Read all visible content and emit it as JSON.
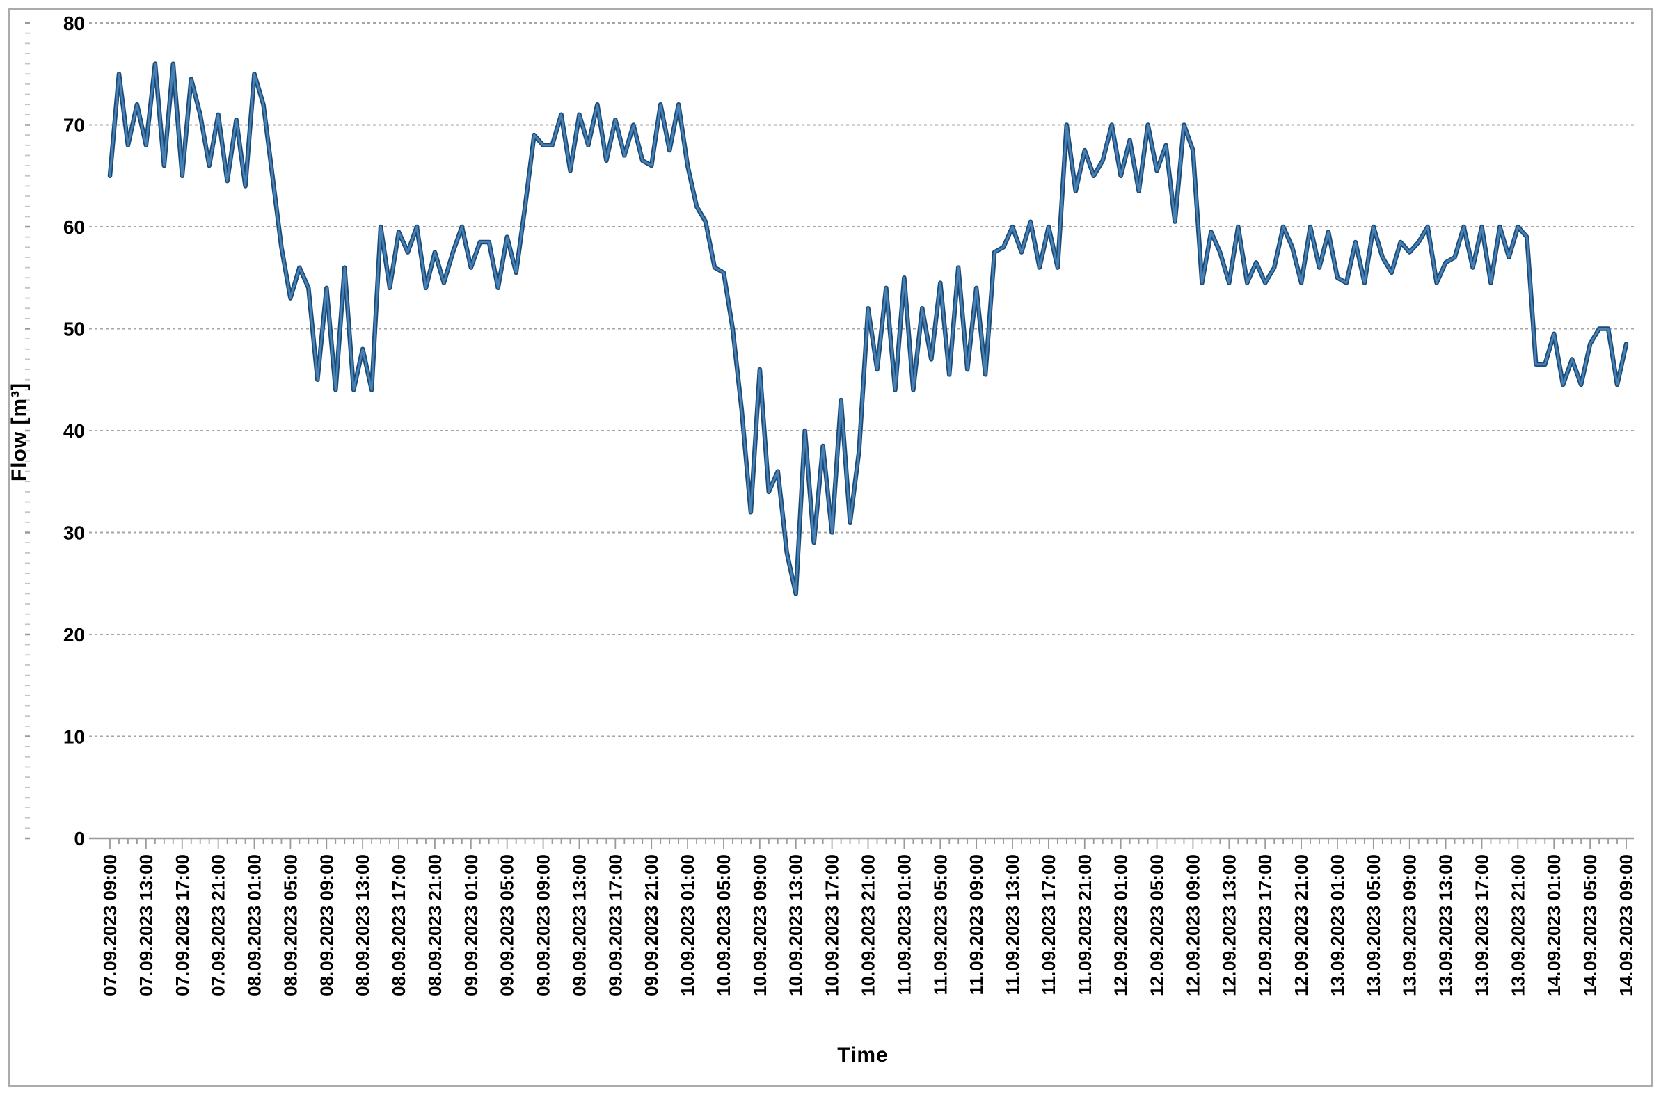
{
  "chart_data": {
    "type": "line",
    "title": "",
    "xlabel": "Time",
    "ylabel": "Flow [m³]",
    "ylim": [
      0,
      80
    ],
    "y_ticks": [
      0,
      10,
      20,
      30,
      40,
      50,
      60,
      70,
      80
    ],
    "grid": "horizontal, dashed, light gray",
    "legend": "none",
    "x_step_hours": 1,
    "x_label_every_hours": 4,
    "x_tick_labels": [
      "07.09.2023 09:00",
      "07.09.2023 13:00",
      "07.09.2023 17:00",
      "07.09.2023 21:00",
      "08.09.2023 01:00",
      "08.09.2023 05:00",
      "08.09.2023 09:00",
      "08.09.2023 13:00",
      "08.09.2023 17:00",
      "08.09.2023 21:00",
      "09.09.2023 01:00",
      "09.09.2023 05:00",
      "09.09.2023 09:00",
      "09.09.2023 13:00",
      "09.09.2023 17:00",
      "09.09.2023 21:00",
      "10.09.2023 01:00",
      "10.09.2023 05:00",
      "10.09.2023 09:00",
      "10.09.2023 13:00",
      "10.09.2023 17:00",
      "10.09.2023 21:00",
      "11.09.2023 01:00",
      "11.09.2023 05:00",
      "11.09.2023 09:00",
      "11.09.2023 13:00",
      "11.09.2023 17:00",
      "11.09.2023 21:00",
      "12.09.2023 01:00",
      "12.09.2023 05:00",
      "12.09.2023 09:00",
      "12.09.2023 13:00",
      "12.09.2023 17:00",
      "12.09.2023 21:00",
      "13.09.2023 01:00",
      "13.09.2023 05:00",
      "13.09.2023 09:00",
      "13.09.2023 13:00",
      "13.09.2023 17:00",
      "13.09.2023 21:00",
      "14.09.2023 01:00",
      "14.09.2023 05:00",
      "14.09.2023 09:00"
    ],
    "series": [
      {
        "name": "Flow",
        "color_outer": "#1a4a75",
        "color_inner": "#4780b4",
        "start": "07.09.2023 09:00",
        "values": [
          65,
          75,
          68,
          72,
          68,
          76,
          66,
          76,
          65,
          74.5,
          71,
          66,
          71,
          64.5,
          70.5,
          64,
          75,
          72,
          65,
          58,
          53,
          56,
          54,
          45,
          54,
          44,
          56,
          44,
          48,
          44,
          60,
          54,
          59.5,
          57.5,
          60,
          54,
          57.5,
          54.5,
          57.5,
          60,
          56,
          58.5,
          58.5,
          54,
          59,
          55.5,
          62,
          69,
          68,
          68,
          71,
          65.5,
          71,
          68,
          72,
          66.5,
          70.5,
          67,
          70,
          66.5,
          66,
          72,
          67.5,
          72,
          66,
          62,
          60.5,
          56,
          55.5,
          50,
          42,
          32,
          46,
          34,
          36,
          28,
          24,
          40,
          29,
          38.5,
          30,
          43,
          31,
          38,
          52,
          46,
          54,
          44,
          55,
          44,
          52,
          47,
          54.5,
          45.5,
          56,
          46,
          54,
          45.5,
          57.5,
          58,
          60,
          57.5,
          60.5,
          56,
          60,
          56,
          70,
          63.5,
          67.5,
          65,
          66.5,
          70,
          65,
          68.5,
          63.5,
          70,
          65.5,
          68,
          60.5,
          70,
          67.5,
          54.5,
          59.5,
          57.5,
          54.5,
          60,
          54.5,
          56.5,
          54.5,
          56,
          60,
          58,
          54.5,
          60,
          56,
          59.5,
          55,
          54.5,
          58.5,
          54.5,
          60,
          57,
          55.5,
          58.5,
          57.5,
          58.5,
          60,
          54.5,
          56.5,
          57,
          60,
          56,
          60,
          54.5,
          60,
          57,
          60,
          59,
          46.5,
          46.5,
          49.5,
          44.5,
          47,
          44.5,
          48.5,
          50,
          50,
          44.5,
          48.5
        ]
      }
    ],
    "colors": {
      "gridline": "#a6a6a6",
      "axis": "#9a9a9a",
      "tick": "#9a9a9a",
      "frame_border": "#ababab",
      "text": "#000000",
      "background": "#ffffff"
    }
  },
  "axis_titles": {
    "y": "Flow [m³]",
    "x": "Time"
  }
}
